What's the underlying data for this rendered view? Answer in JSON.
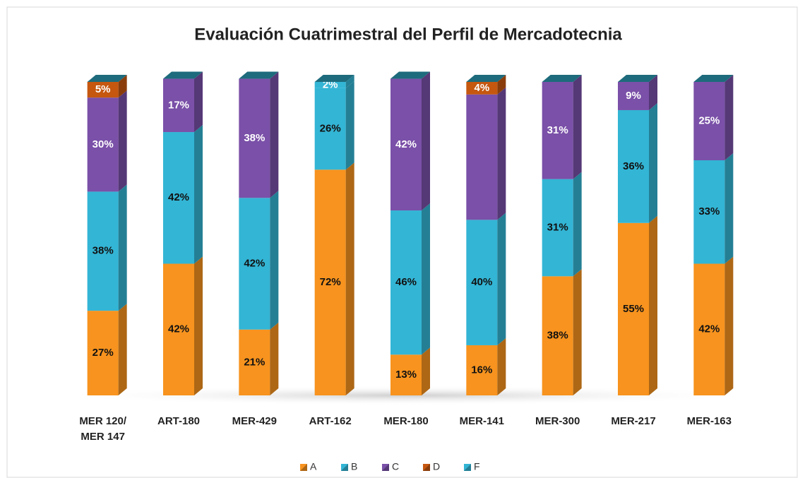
{
  "chart_data": {
    "type": "bar",
    "stacked": true,
    "title": "Evaluación Cuatrimestral del Perfil de Mercadotecnia",
    "categories": [
      "MER 120/\nMER 147",
      "ART-180",
      "MER-429",
      "ART-162",
      "MER-180",
      "MER-141",
      "MER-300",
      "MER-217",
      "MER-163"
    ],
    "series": [
      {
        "name": "A",
        "color": "#f7931e",
        "label_color": "#111",
        "values": [
          27,
          42,
          21,
          72,
          13,
          16,
          38,
          55,
          42
        ],
        "value_labels": [
          "27%",
          "42%",
          "21%",
          "72%",
          "13%",
          "16%",
          "38%",
          "55%",
          "42%"
        ]
      },
      {
        "name": "B",
        "color": "#33b5d5",
        "label_color": "#111",
        "values": [
          38,
          42,
          42,
          26,
          46,
          40,
          31,
          36,
          33
        ],
        "value_labels": [
          "38%",
          "42%",
          "42%",
          "26%",
          "46%",
          "40%",
          "31%",
          "36%",
          "33%"
        ]
      },
      {
        "name": "C",
        "color": "#7a50a8",
        "label_color": "#fff",
        "values": [
          30,
          17,
          38,
          0,
          42,
          40,
          31,
          9,
          25
        ],
        "value_labels": [
          "30%",
          "17%",
          "38%",
          null,
          "42%",
          null,
          "31%",
          "9%",
          "25%"
        ]
      },
      {
        "name": "D",
        "color": "#c5570f",
        "label_color": "#fff",
        "values": [
          5,
          0,
          0,
          0,
          0,
          4,
          0,
          0,
          0
        ],
        "value_labels": [
          "5%",
          null,
          null,
          null,
          null,
          "4%",
          null,
          null,
          null
        ]
      },
      {
        "name": "F",
        "color": "#33b5d5",
        "label_color": "#fff",
        "values": [
          0,
          0,
          0,
          2,
          0,
          0,
          0,
          0,
          0
        ],
        "value_labels": [
          null,
          null,
          null,
          "2%",
          null,
          null,
          null,
          null,
          null
        ]
      }
    ],
    "ylim": [
      0,
      100
    ],
    "legend": "bottom"
  }
}
